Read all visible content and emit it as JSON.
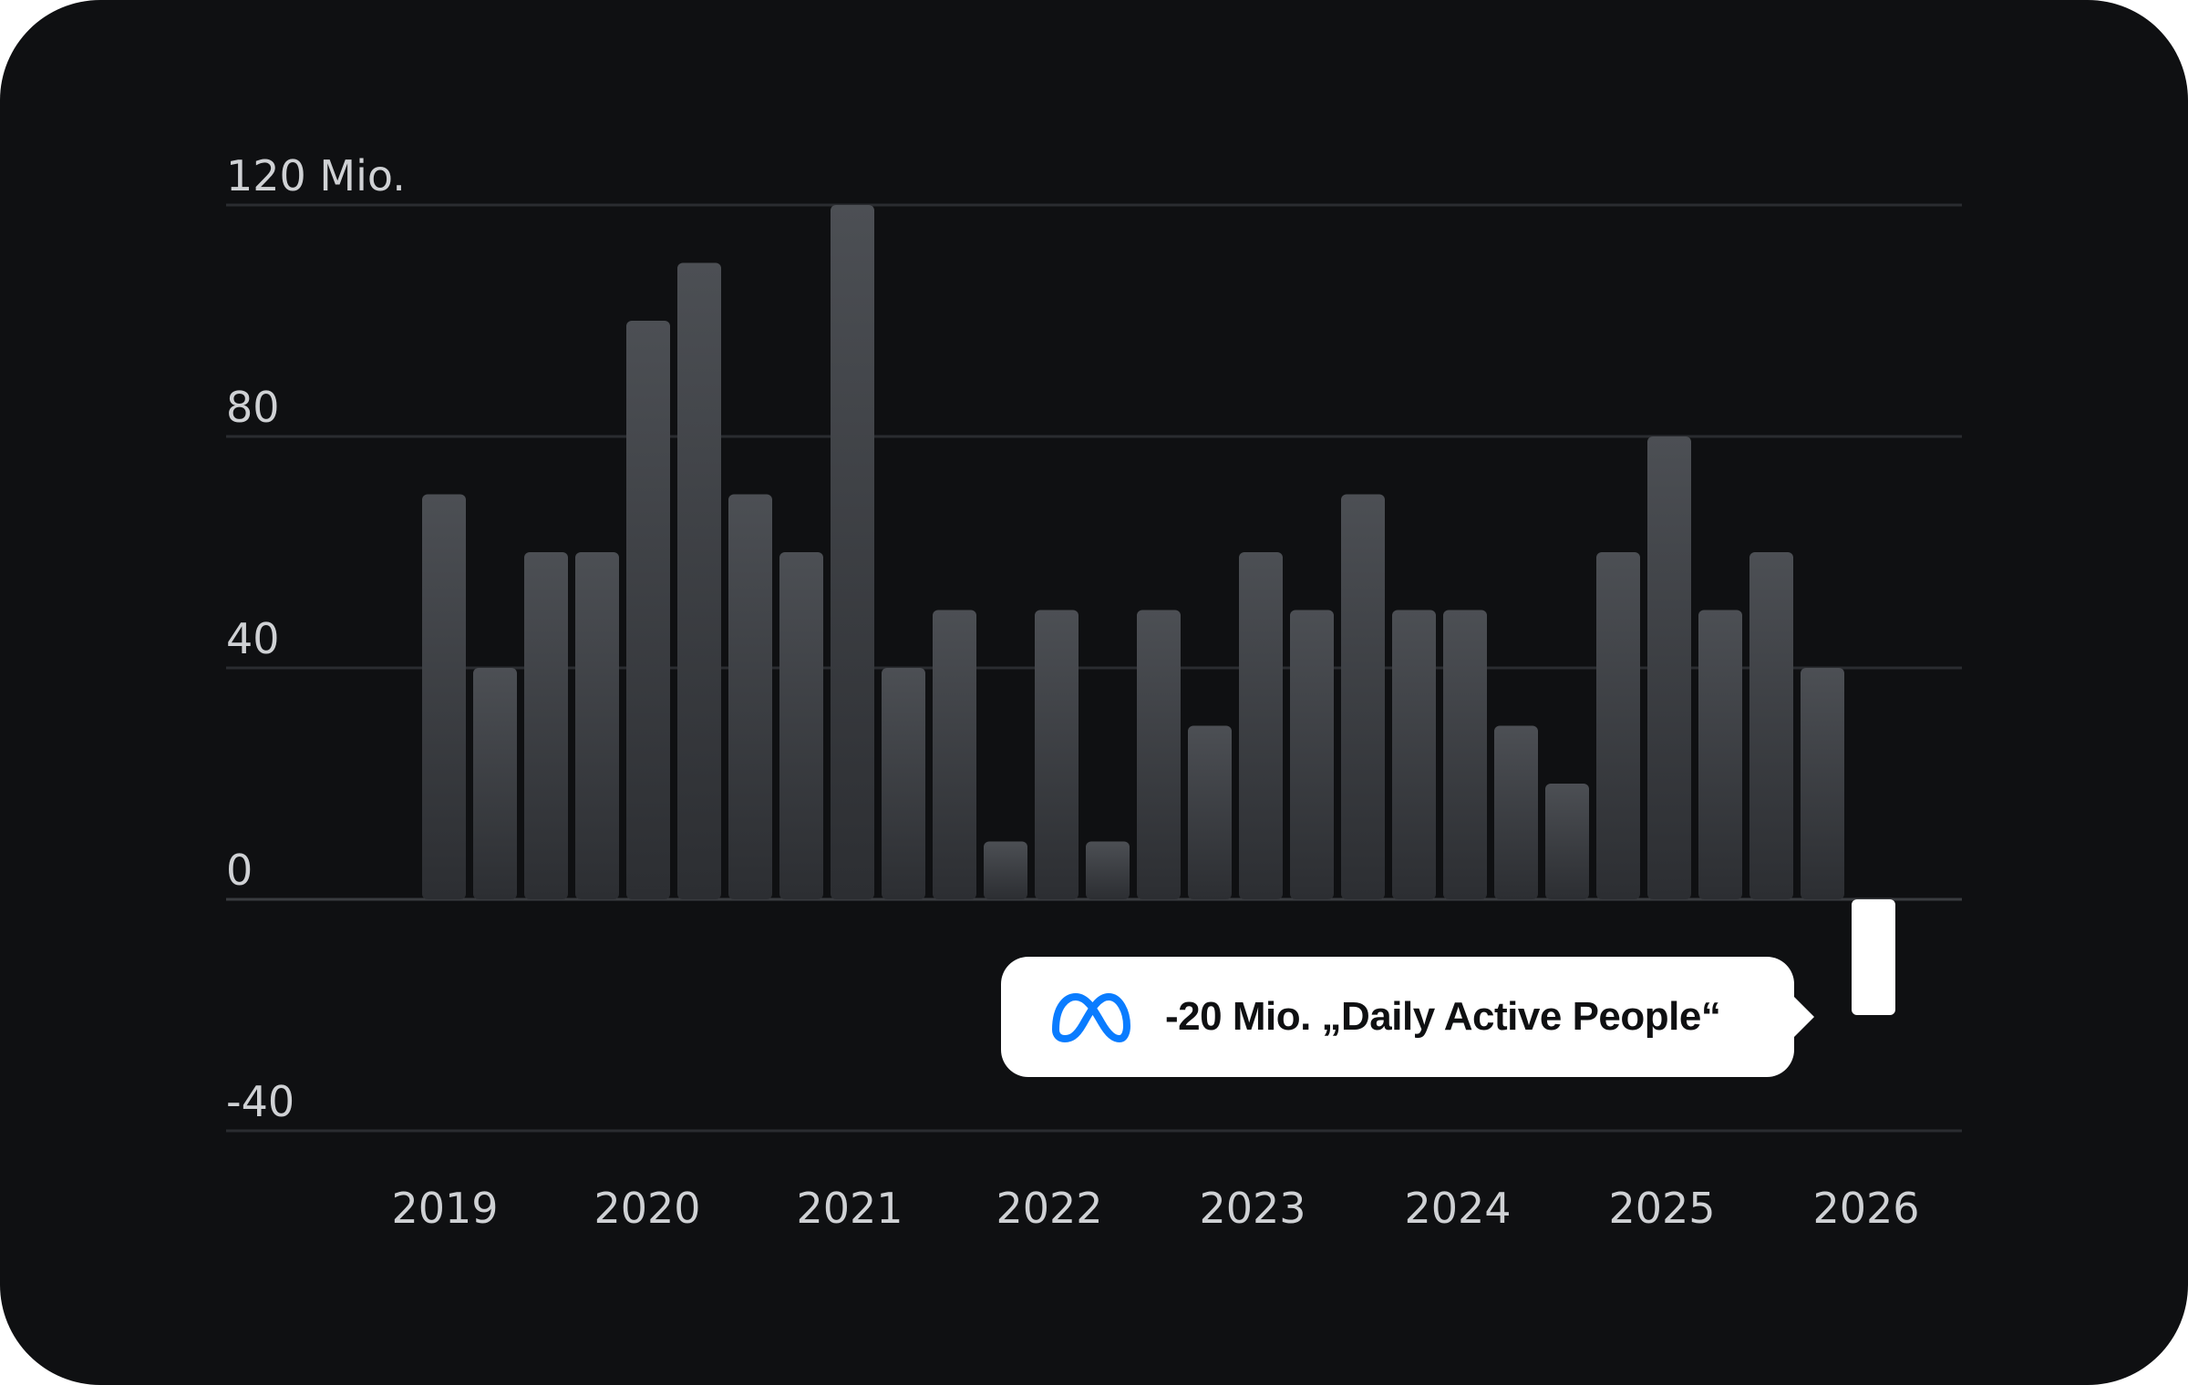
{
  "chart_data": {
    "type": "bar",
    "y_ticks": [
      {
        "value": 120,
        "label": "120 Mio."
      },
      {
        "value": 80,
        "label": "80"
      },
      {
        "value": 40,
        "label": "40"
      },
      {
        "value": 0,
        "label": "0"
      },
      {
        "value": -40,
        "label": "-40"
      }
    ],
    "ylim": [
      -40,
      120
    ],
    "x_labels": [
      "2019",
      "2020",
      "2021",
      "2022",
      "2023",
      "2024",
      "2025",
      "2026"
    ],
    "grid": true,
    "values": [
      70,
      40,
      60,
      60,
      100,
      110,
      70,
      60,
      120,
      40,
      50,
      10,
      50,
      10,
      50,
      30,
      60,
      50,
      70,
      50,
      50,
      30,
      20,
      60,
      80,
      50,
      60,
      40,
      -20
    ],
    "highlight_index": 28,
    "bar_color": "#3a3d42",
    "highlight_color": "#ffffff",
    "annotation": {
      "text": "-20 Mio. „Daily Active People“",
      "icon": "meta-logo-icon",
      "icon_color": "#0a7cff"
    }
  }
}
